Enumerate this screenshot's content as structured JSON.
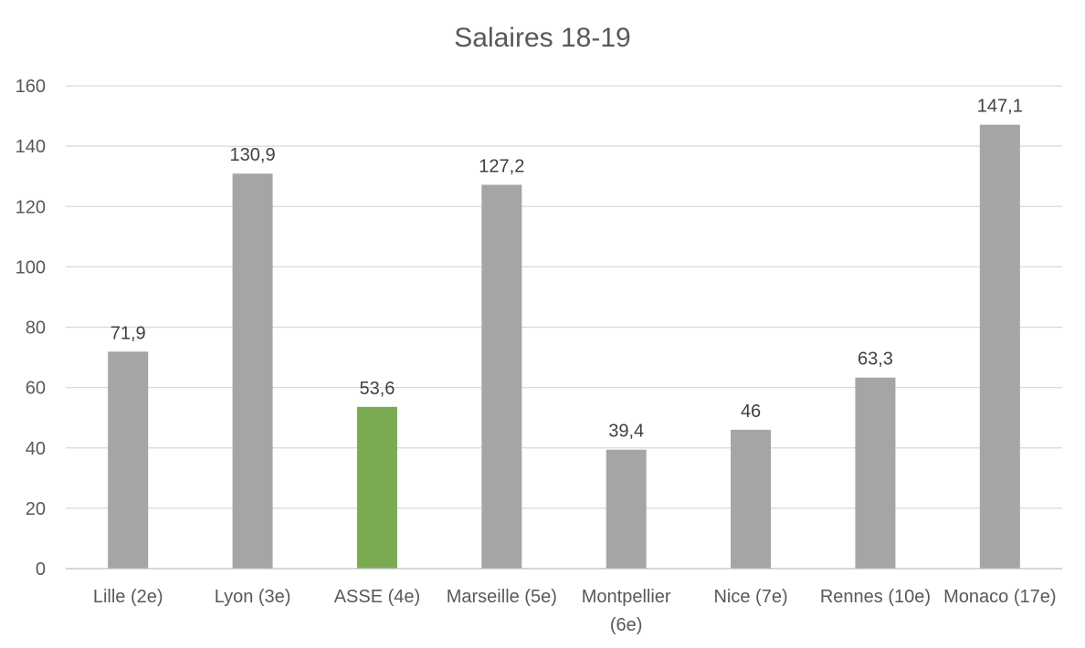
{
  "chart_data": {
    "type": "bar",
    "title": "Salaires 18-19",
    "categories": [
      "Lille (2e)",
      "Lyon (3e)",
      "ASSE (4e)",
      "Marseille (5e)",
      "Montpellier (6e)",
      "Nice (7e)",
      "Rennes (10e)",
      "Monaco (17e)"
    ],
    "category_lines": [
      [
        "Lille (2e)"
      ],
      [
        "Lyon (3e)"
      ],
      [
        "ASSE (4e)"
      ],
      [
        "Marseille (5e)"
      ],
      [
        "Montpellier",
        "(6e)"
      ],
      [
        "Nice (7e)"
      ],
      [
        "Rennes (10e)"
      ],
      [
        "Monaco (17e)"
      ]
    ],
    "values": [
      71.9,
      130.9,
      53.6,
      127.2,
      39.4,
      46,
      63.3,
      147.1
    ],
    "data_labels": [
      "71,9",
      "130,9",
      "53,6",
      "127,2",
      "39,4",
      "46",
      "63,3",
      "147,1"
    ],
    "highlight_index": 2,
    "colors": {
      "default": "#a5a5a5",
      "highlight": "#7aab52"
    },
    "ylim": [
      0,
      160
    ],
    "yticks": [
      0,
      20,
      40,
      60,
      80,
      100,
      120,
      140,
      160
    ],
    "xlabel": "",
    "ylabel": "",
    "grid": true,
    "legend": false
  }
}
